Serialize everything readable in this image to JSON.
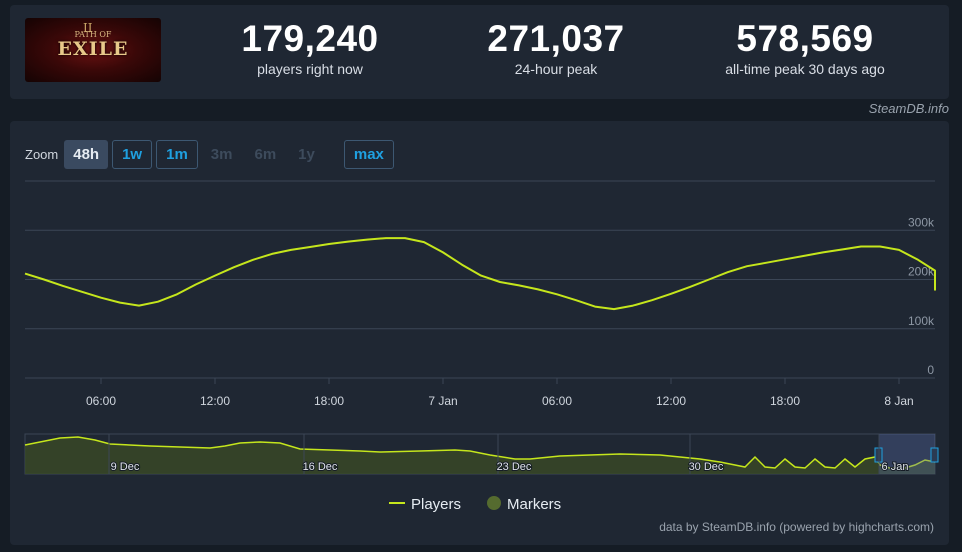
{
  "header": {
    "logo": {
      "small": "PATH OF",
      "big": "EXILE",
      "num": "II"
    },
    "stats": [
      {
        "value": "179,240",
        "label": "players right now"
      },
      {
        "value": "271,037",
        "label": "24-hour peak"
      },
      {
        "value": "578,569",
        "label": "all-time peak 30 days ago"
      }
    ],
    "credit": "SteamDB.info"
  },
  "zoom": {
    "label": "Zoom",
    "buttons": [
      {
        "label": "48h",
        "state": "selected"
      },
      {
        "label": "1w",
        "state": "active"
      },
      {
        "label": "1m",
        "state": "active"
      },
      {
        "label": "3m",
        "state": "disabled"
      },
      {
        "label": "6m",
        "state": "disabled"
      },
      {
        "label": "1y",
        "state": "disabled"
      },
      {
        "label": "max",
        "state": "active"
      }
    ]
  },
  "chart_data": {
    "type": "line",
    "x_labels": [
      "06:00",
      "12:00",
      "18:00",
      "7 Jan",
      "06:00",
      "12:00",
      "18:00",
      "8 Jan"
    ],
    "y_ticks": [
      "0",
      "100k",
      "200k",
      "300k"
    ],
    "ylim": [
      0,
      400000
    ],
    "grid": true,
    "series": [
      {
        "name": "Players",
        "color": "#c5e61c",
        "x_hours": [
          -4,
          -3,
          -2,
          -1,
          0,
          1,
          2,
          3,
          4,
          5,
          6,
          7,
          8,
          9,
          10,
          11,
          12,
          13,
          14,
          15,
          16,
          17,
          18,
          19,
          20,
          21,
          22,
          23,
          24,
          25,
          26,
          27,
          28,
          29,
          30,
          31,
          32,
          33,
          34,
          35,
          36,
          37,
          38,
          39,
          40,
          41,
          42,
          43,
          44,
          45,
          46,
          47,
          48,
          48.9
        ],
        "values": [
          212000,
          200000,
          187000,
          175000,
          163000,
          153000,
          147000,
          155000,
          170000,
          190000,
          208000,
          225000,
          240000,
          252000,
          260000,
          266000,
          272000,
          277000,
          281000,
          284000,
          284000,
          276000,
          255000,
          230000,
          208000,
          195000,
          188000,
          180000,
          170000,
          158000,
          145000,
          140000,
          147000,
          158000,
          171000,
          185000,
          200000,
          215000,
          227000,
          234000,
          241000,
          248000,
          255000,
          261000,
          267000,
          267000,
          260000,
          240000,
          218000,
          197000,
          187000,
          181000,
          179000,
          179240
        ]
      }
    ],
    "navigator": {
      "x_labels": [
        "9 Dec",
        "16 Dec",
        "23 Dec",
        "30 Dec",
        "6 Jan"
      ],
      "legend_extra": "Markers",
      "marker_color": "#556b2f"
    }
  },
  "legend": {
    "players": "Players",
    "markers": "Markers"
  },
  "footer": {
    "credit": "data by SteamDB.info (powered by highcharts.com)"
  }
}
